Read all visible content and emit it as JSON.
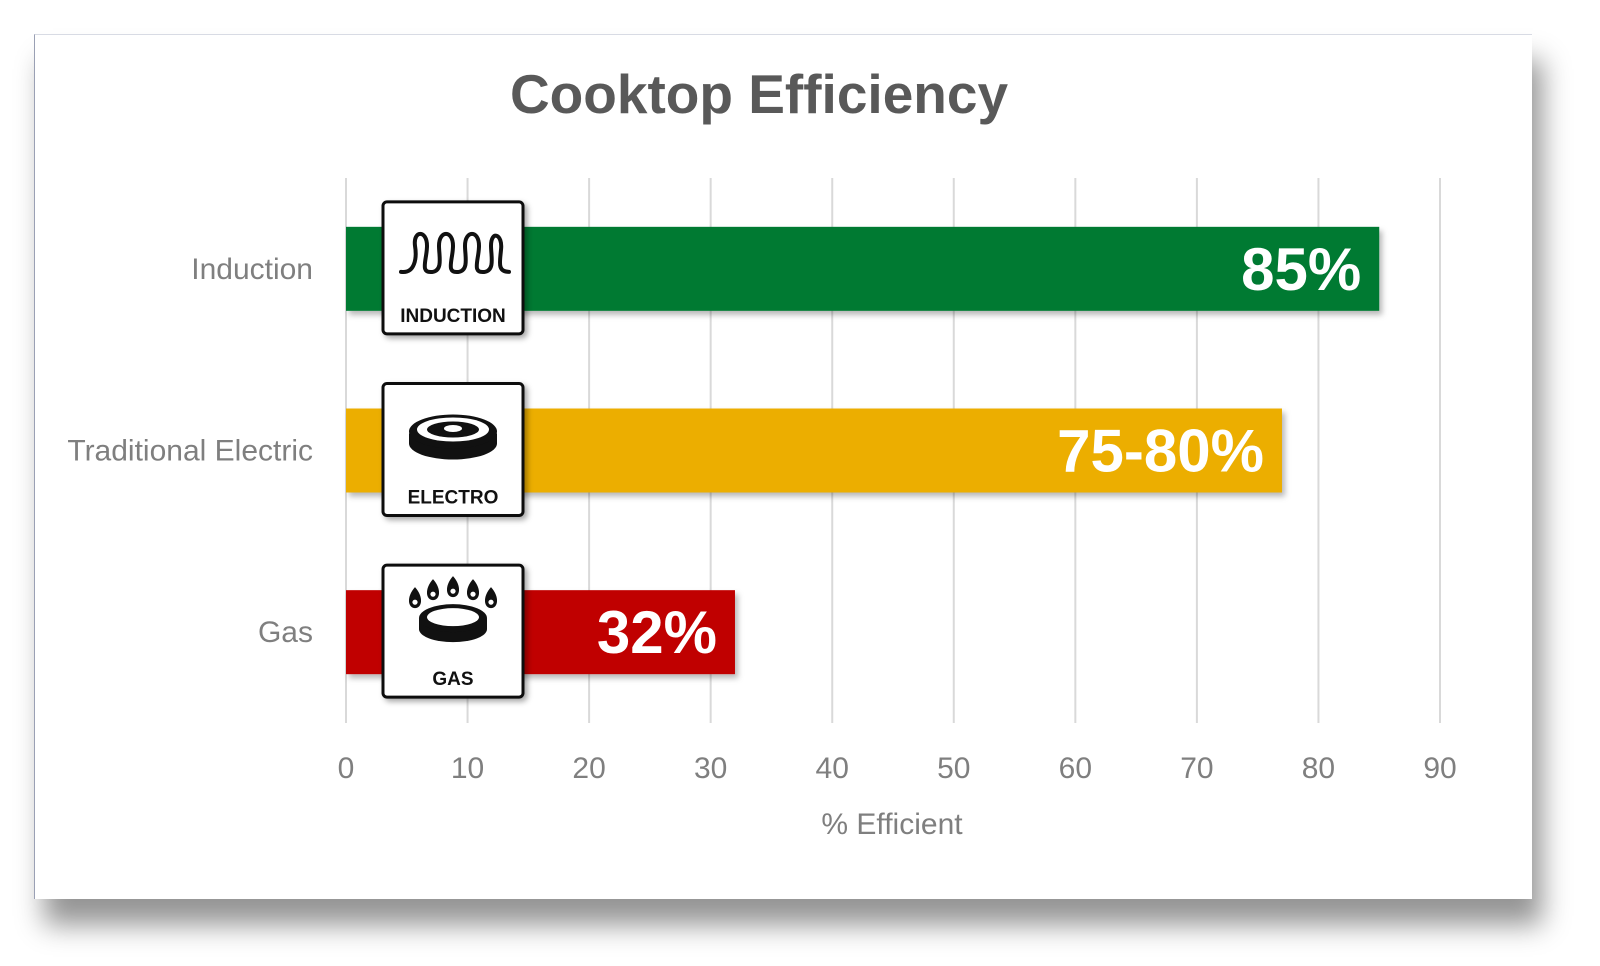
{
  "chart_data": {
    "type": "bar",
    "orientation": "horizontal",
    "title": "Cooktop Efficiency",
    "xlabel": "% Efficient",
    "ylabel": "",
    "xlim": [
      0,
      90
    ],
    "x_ticks": [
      "0",
      "10",
      "20",
      "30",
      "40",
      "50",
      "60",
      "70",
      "80",
      "90"
    ],
    "grid": true,
    "legend": "none",
    "categories": [
      "Induction",
      "Traditional Electric",
      "Gas"
    ],
    "values": [
      85,
      77,
      32
    ],
    "data_labels": [
      "85%",
      "75-80%",
      "32%"
    ],
    "colors": [
      "#007a33",
      "#ecae00",
      "#c00000"
    ],
    "icons": [
      {
        "name": "induction-coil-icon",
        "caption": "INDUCTION"
      },
      {
        "name": "electric-hotplate-icon",
        "caption": "ELECTRO"
      },
      {
        "name": "gas-burner-icon",
        "caption": "GAS"
      }
    ]
  }
}
